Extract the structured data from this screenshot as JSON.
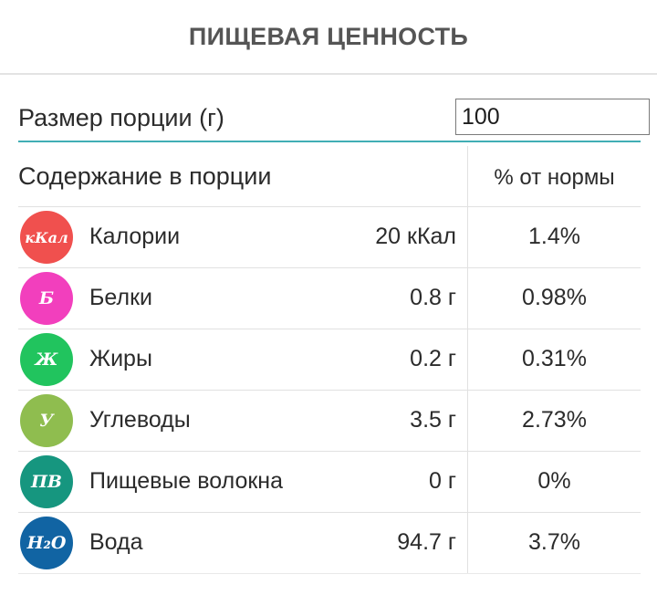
{
  "header": {
    "title": "ПИЩЕВАЯ ЦЕННОСТЬ"
  },
  "portion": {
    "label": "Размер порции (г)",
    "value": "100"
  },
  "table": {
    "col_content": "Содержание в порции",
    "col_norm": "% от нормы",
    "rows": [
      {
        "icon_label": "кКал",
        "icon_color": "#f0504e",
        "name": "Калории",
        "amount": "20 кКал",
        "pct": "1.4%"
      },
      {
        "icon_label": "Б",
        "icon_color": "#f23fbd",
        "name": "Белки",
        "amount": "0.8 г",
        "pct": "0.98%"
      },
      {
        "icon_label": "Ж",
        "icon_color": "#21c45e",
        "name": "Жиры",
        "amount": "0.2 г",
        "pct": "0.31%"
      },
      {
        "icon_label": "У",
        "icon_color": "#8fbd4f",
        "name": "Углеводы",
        "amount": "3.5 г",
        "pct": "2.73%"
      },
      {
        "icon_label": "ПВ",
        "icon_color": "#16967f",
        "name": "Пищевые волокна",
        "amount": "0 г",
        "pct": "0%"
      },
      {
        "icon_label": "H₂O",
        "icon_color": "#1164a3",
        "name": "Вода",
        "amount": "94.7 г",
        "pct": "3.7%"
      }
    ]
  }
}
